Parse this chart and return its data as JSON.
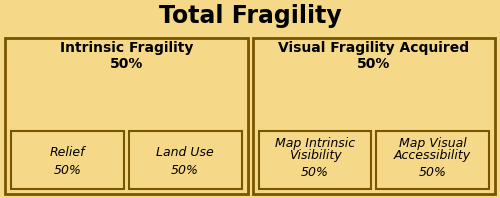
{
  "title": "Total Fragility",
  "bg_color": "#F5D988",
  "border_color": "#7A5500",
  "title_fontsize": 17,
  "title_fontweight": "bold",
  "left_header_line1": "Intrinsic Fragility",
  "left_header_line2": "50%",
  "right_header_line1": "Visual Fragility Acquired",
  "right_header_line2": "50%",
  "left_children": [
    {
      "line1": "Relief",
      "line2": "50%"
    },
    {
      "line1": "Land Use",
      "line2": "50%"
    }
  ],
  "right_children": [
    {
      "line1": "Map Intrinsic\nVisibility",
      "line2": "50%"
    },
    {
      "line1": "Map Visual\nAccessibility",
      "line2": "50%"
    }
  ],
  "header_fontsize": 10,
  "child_fontsize": 9
}
